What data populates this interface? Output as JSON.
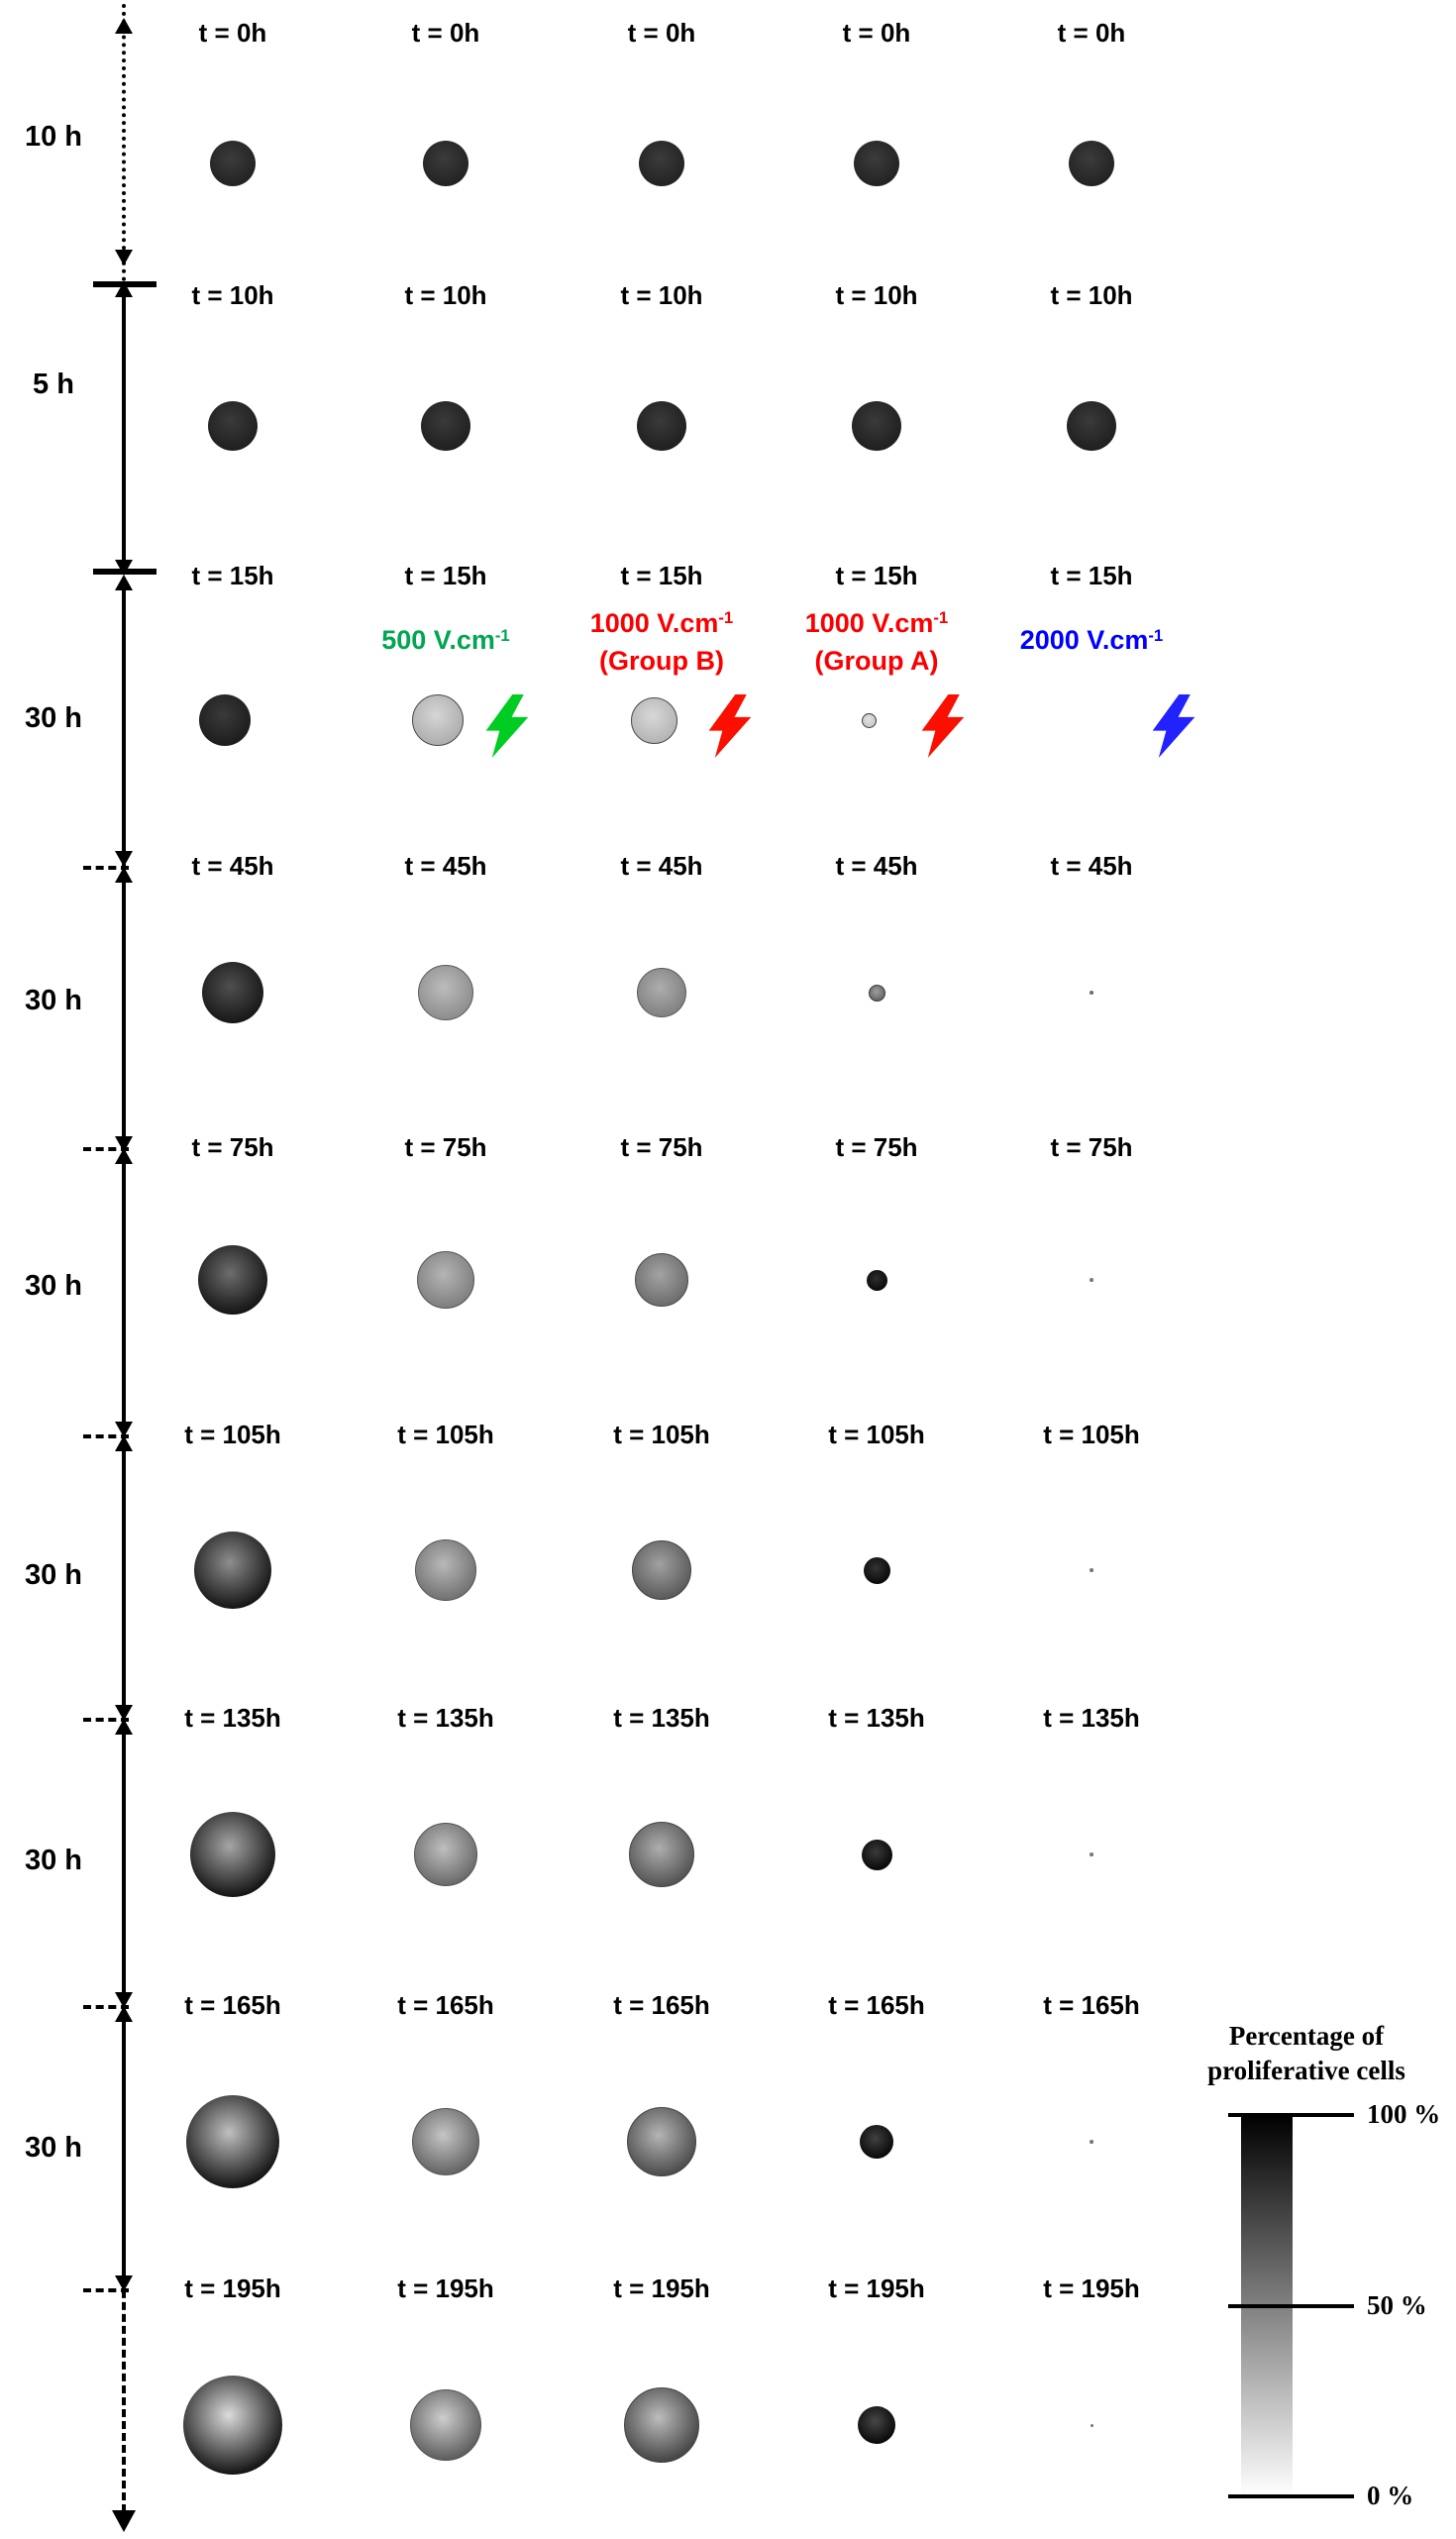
{
  "timeline": {
    "intervals": [
      {
        "label": "10 h"
      },
      {
        "label": "5 h"
      },
      {
        "label": "30 h"
      },
      {
        "label": "30 h"
      },
      {
        "label": "30 h"
      },
      {
        "label": "30 h"
      },
      {
        "label": "30 h"
      },
      {
        "label": "30 h"
      }
    ]
  },
  "treatments": [
    {
      "base": "500 V.cm",
      "sup": "-1",
      "line2": "",
      "color": "#00a651",
      "bolt_color": "#00cc22",
      "column": 1
    },
    {
      "base": "1000 V.cm",
      "sup": "-1",
      "line2": "(Group B)",
      "color": "#fa0000",
      "bolt_color": "#fa0f00",
      "column": 2
    },
    {
      "base": "1000 V.cm",
      "sup": "-1",
      "line2": "(Group A)",
      "color": "#fa0000",
      "bolt_color": "#fa0f00",
      "column": 3
    },
    {
      "base": "2000 V.cm",
      "sup": "-1",
      "line2": "",
      "color": "#0000ff",
      "bolt_color": "#2222ff",
      "column": 4
    }
  ],
  "rows": [
    {
      "time": "t = 0h",
      "spheroids": [
        {
          "d": 46,
          "c0": "#3c3c3c",
          "c1": "#212121"
        },
        {
          "d": 46,
          "c0": "#3c3c3c",
          "c1": "#212121"
        },
        {
          "d": 46,
          "c0": "#3c3c3c",
          "c1": "#212121"
        },
        {
          "d": 46,
          "c0": "#3c3c3c",
          "c1": "#212121"
        },
        {
          "d": 46,
          "c0": "#3c3c3c",
          "c1": "#212121"
        }
      ]
    },
    {
      "time": "t = 10h",
      "spheroids": [
        {
          "d": 50,
          "c0": "#3a3a3a",
          "c1": "#1e1e1e"
        },
        {
          "d": 50,
          "c0": "#3a3a3a",
          "c1": "#1e1e1e"
        },
        {
          "d": 50,
          "c0": "#3a3a3a",
          "c1": "#1e1e1e"
        },
        {
          "d": 50,
          "c0": "#3a3a3a",
          "c1": "#1e1e1e"
        },
        {
          "d": 50,
          "c0": "#3a3a3a",
          "c1": "#1e1e1e"
        }
      ]
    },
    {
      "time": "t = 15h",
      "spheroids": [
        {
          "d": 52,
          "c0": "#3a3a3a",
          "c1": "#1b1b1b"
        },
        {
          "d": 52,
          "c0": "#d6d6d6",
          "c1": "#ababab",
          "ring": "#4a4a4a"
        },
        {
          "d": 47,
          "c0": "#d8d8d8",
          "c1": "#b2b2b2",
          "ring": "#4a4a4a"
        },
        {
          "d": 15,
          "c0": "#e2e2e2",
          "c1": "#c6c6c6",
          "ring": "#3a3a3a"
        },
        null
      ]
    },
    {
      "time": "t = 45h",
      "spheroids": [
        {
          "d": 62,
          "c0": "#4f4f4f",
          "c1": "#141414"
        },
        {
          "d": 56,
          "c0": "#bcbcbc",
          "c1": "#8b8b8b",
          "ring": "#5a5a5a"
        },
        {
          "d": 50,
          "c0": "#adadad",
          "c1": "#7f7f7f",
          "ring": "#5a5a5a"
        },
        {
          "d": 17,
          "c0": "#9e9e9e",
          "c1": "#636363",
          "ring": "#3a3a3a"
        },
        {
          "d": 4,
          "c0": "#808080",
          "c1": "#565656"
        }
      ]
    },
    {
      "time": "t = 75h",
      "spheroids": [
        {
          "d": 70,
          "c0": "#6d6d6d",
          "c1": "#101010"
        },
        {
          "d": 58,
          "c0": "#b5b5b5",
          "c1": "#7c7c7c",
          "ring": "#555555"
        },
        {
          "d": 54,
          "c0": "#a3a3a3",
          "c1": "#6a6a6a",
          "ring": "#4a4a4a"
        },
        {
          "d": 21,
          "c0": "#2e2e2e",
          "c1": "#070707"
        },
        {
          "d": 4,
          "c0": "#8a8a8a",
          "c1": "#606060"
        }
      ]
    },
    {
      "time": "t = 105h",
      "spheroids": [
        {
          "d": 78,
          "c0": "#8e8e8e",
          "c1": "#0e0e0e"
        },
        {
          "d": 62,
          "c0": "#b9b9b9",
          "c1": "#6e6e6e",
          "ring": "#555555"
        },
        {
          "d": 60,
          "c0": "#a1a1a1",
          "c1": "#575757",
          "ring": "#444444"
        },
        {
          "d": 27,
          "c0": "#333333",
          "c1": "#060606"
        },
        {
          "d": 4,
          "c0": "#8a8a8a",
          "c1": "#606060"
        }
      ]
    },
    {
      "time": "t = 135h",
      "spheroids": [
        {
          "d": 86,
          "c0": "#a6a6a6",
          "c1": "#0c0c0c"
        },
        {
          "d": 64,
          "c0": "#bfbfbf",
          "c1": "#666666",
          "ring": "#555555"
        },
        {
          "d": 66,
          "c0": "#aeaeae",
          "c1": "#4f4f4f",
          "ring": "#444444"
        },
        {
          "d": 31,
          "c0": "#3a3a3a",
          "c1": "#050505"
        },
        {
          "d": 4,
          "c0": "#8a8a8a",
          "c1": "#606060"
        }
      ]
    },
    {
      "time": "t = 165h",
      "spheroids": [
        {
          "d": 94,
          "c0": "#c0c0c0",
          "c1": "#0a0a0a"
        },
        {
          "d": 68,
          "c0": "#c6c6c6",
          "c1": "#5f5f5f",
          "ring": "#555555"
        },
        {
          "d": 70,
          "c0": "#b5b5b5",
          "c1": "#474747",
          "ring": "#444444"
        },
        {
          "d": 34,
          "c0": "#404040",
          "c1": "#050505"
        },
        {
          "d": 4,
          "c0": "#8a8a8a",
          "c1": "#606060"
        }
      ]
    },
    {
      "time": "t = 195h",
      "spheroids": [
        {
          "d": 100,
          "c0": "#dcdcdc",
          "c1": "#090909"
        },
        {
          "d": 72,
          "c0": "#cecece",
          "c1": "#585858",
          "ring": "#555555"
        },
        {
          "d": 76,
          "c0": "#bdbdbd",
          "c1": "#3f3f3f",
          "ring": "#444444"
        },
        {
          "d": 38,
          "c0": "#474747",
          "c1": "#040404"
        },
        {
          "d": 3,
          "c0": "#8a8a8a",
          "c1": "#606060"
        }
      ]
    }
  ],
  "legend": {
    "title_line1": "Percentage of",
    "title_line2": "proliferative cells",
    "top_color": "#000000",
    "bottom_color": "#ffffff",
    "ticks": [
      {
        "label": "100 %",
        "pos": 0
      },
      {
        "label": "50 %",
        "pos": 0.5
      },
      {
        "label": "0 %",
        "pos": 1
      }
    ]
  }
}
